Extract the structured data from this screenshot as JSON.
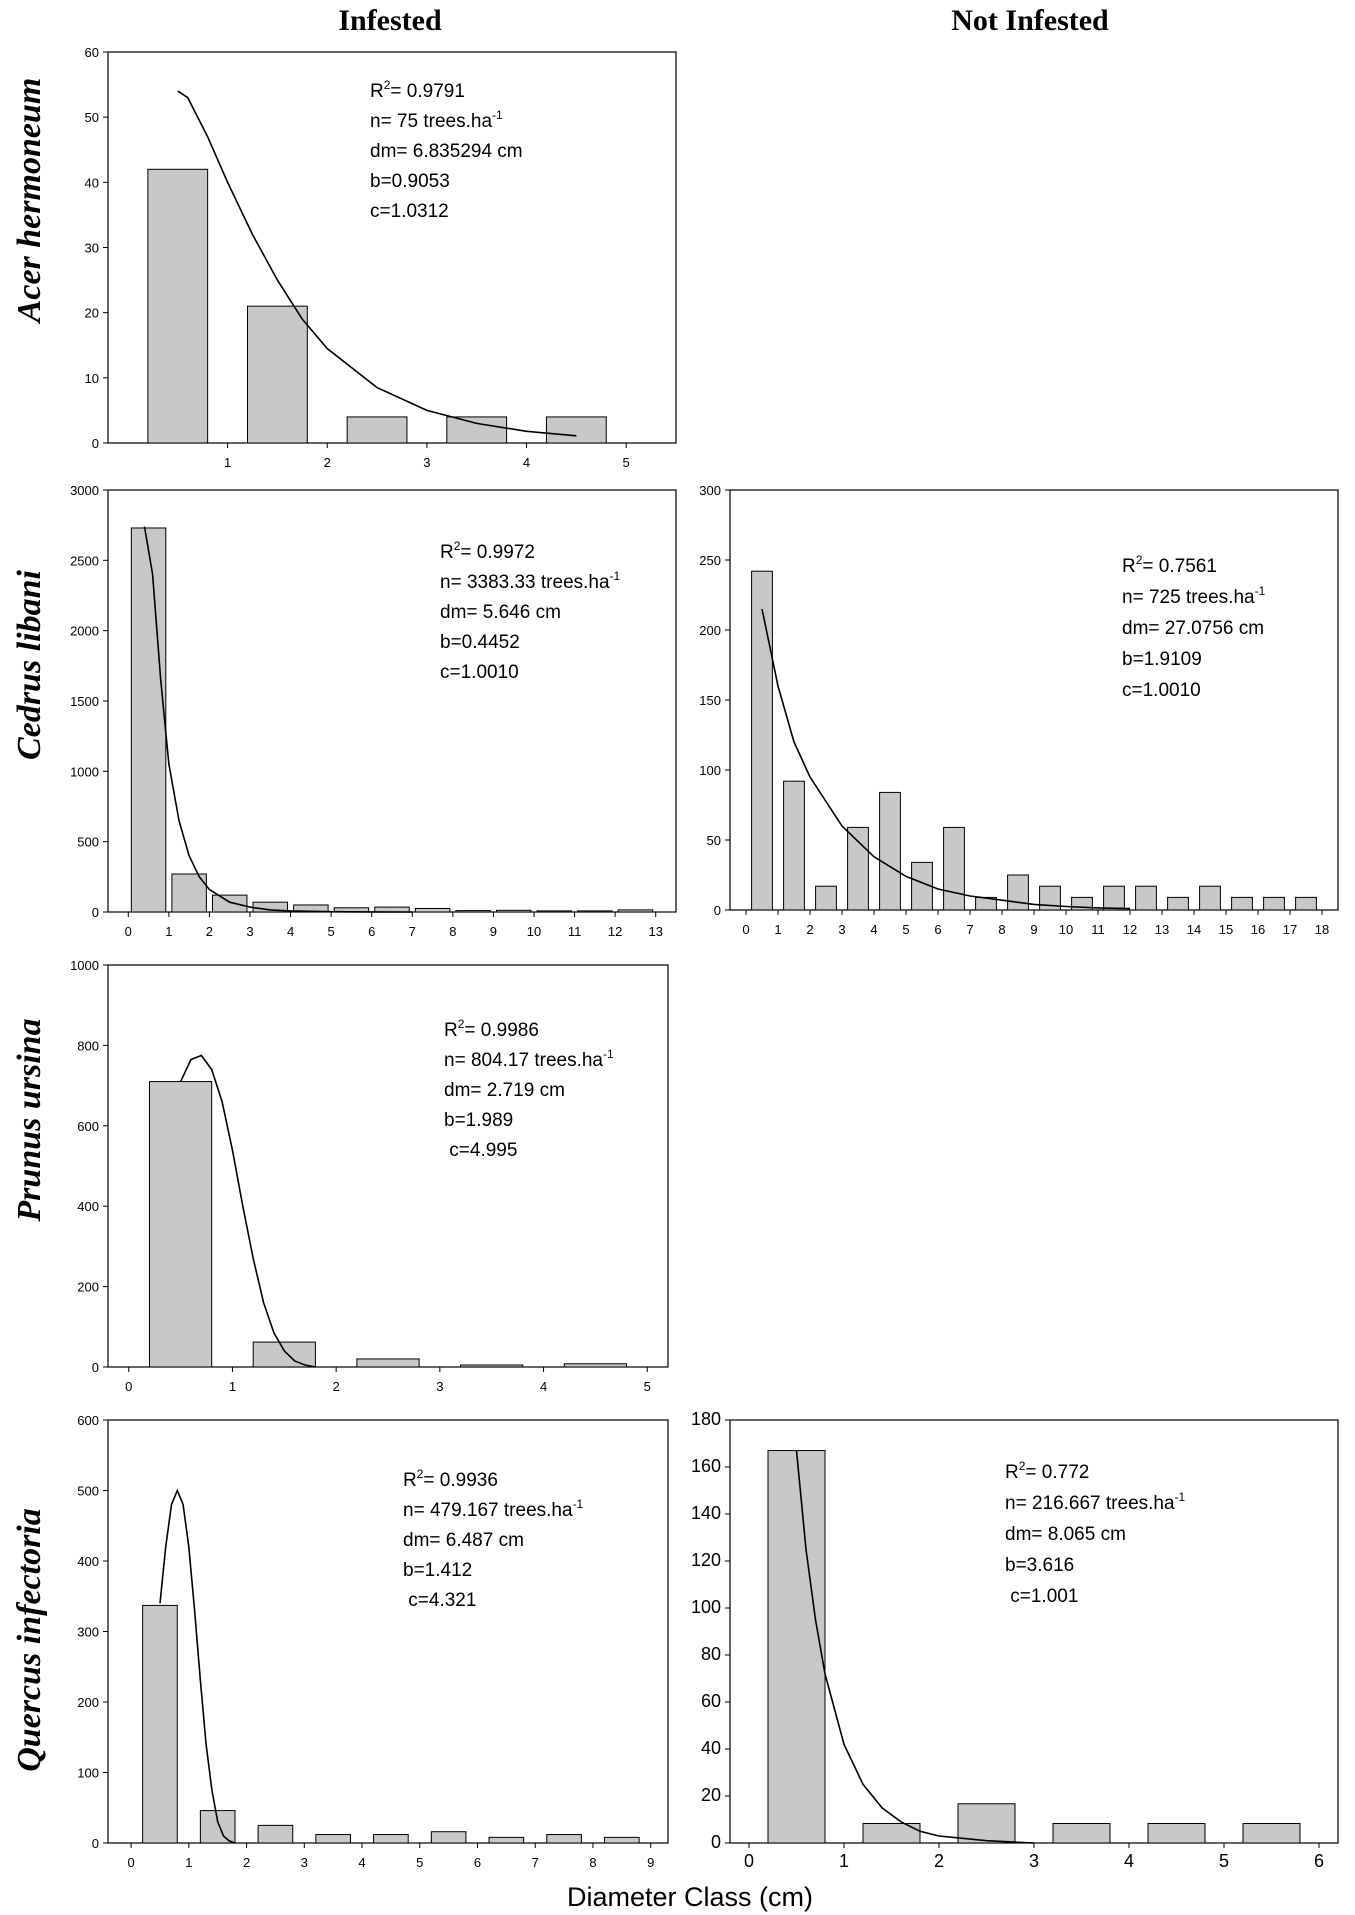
{
  "figure": {
    "col_titles": [
      "Infested",
      "Not Infested"
    ],
    "x_axis_label": "Diameter Class (cm)"
  },
  "chart_data": [
    {
      "type": "bar",
      "species": "Acer hermoneum",
      "condition": "Infested",
      "x": [
        0.5,
        1.5,
        2.5,
        3.5,
        4.5
      ],
      "values": [
        42,
        21,
        4,
        4,
        4
      ],
      "bar_width": 0.6,
      "xlim": [
        -0.2,
        5.5
      ],
      "ylim": [
        0,
        60
      ],
      "xticks": [
        1,
        2,
        3,
        4,
        5
      ],
      "yticks": [
        0,
        10,
        20,
        30,
        40,
        50,
        60
      ],
      "fit_curve": {
        "name": "Weibull fit",
        "x": [
          0.5,
          0.6,
          0.8,
          1.0,
          1.25,
          1.5,
          1.75,
          2.0,
          2.5,
          3.0,
          3.5,
          4.0,
          4.5
        ],
        "y": [
          54,
          53,
          47,
          40,
          32,
          25,
          19,
          14.5,
          8.5,
          5,
          3,
          1.8,
          1.1
        ]
      },
      "annotations": [
        "R|2|= 0.9791",
        "n= 75 trees.ha|-1|",
        "dm= 6.835294 cm",
        "b=0.9053",
        "c=1.0312"
      ]
    },
    {
      "type": "bar",
      "species": "Cedrus libani",
      "condition": "Infested",
      "x": [
        0.5,
        1.5,
        2.5,
        3.5,
        4.5,
        5.5,
        6.5,
        7.5,
        8.5,
        9.5,
        10.5,
        11.5,
        12.5
      ],
      "values": [
        2730,
        270,
        120,
        70,
        50,
        30,
        35,
        25,
        10,
        12,
        8,
        8,
        15
      ],
      "bar_width": 0.85,
      "xlim": [
        -0.5,
        13.5
      ],
      "ylim": [
        0,
        3000
      ],
      "xticks": [
        0,
        1,
        2,
        3,
        4,
        5,
        6,
        7,
        8,
        9,
        10,
        11,
        12,
        13
      ],
      "yticks": [
        0,
        500,
        1000,
        1500,
        2000,
        2500,
        3000
      ],
      "fit_curve": {
        "name": "Weibull fit",
        "x": [
          0.4,
          0.6,
          0.8,
          1.0,
          1.25,
          1.5,
          1.75,
          2.0,
          2.5,
          3.0,
          3.5,
          4.0,
          5.0,
          6.0,
          7.0
        ],
        "y": [
          2740,
          2400,
          1650,
          1050,
          650,
          400,
          250,
          160,
          70,
          35,
          15,
          8,
          2,
          0.5,
          0
        ]
      },
      "annotations": [
        "R|2|= 0.9972",
        "n= 3383.33 trees.ha|-1|",
        "dm= 5.646 cm",
        "b=0.4452",
        "c=1.0010"
      ]
    },
    {
      "type": "bar",
      "species": "Cedrus libani",
      "condition": "Not Infested",
      "x": [
        0.5,
        1.5,
        2.5,
        3.5,
        4.5,
        5.5,
        6.5,
        7.5,
        8.5,
        9.5,
        10.5,
        11.5,
        12.5,
        13.5,
        14.5,
        15.5,
        16.5,
        17.5
      ],
      "values": [
        242,
        92,
        17,
        59,
        84,
        34,
        59,
        9,
        25,
        17,
        9,
        17,
        17,
        9,
        17,
        9,
        9,
        9
      ],
      "bar_width": 0.65,
      "xlim": [
        -0.5,
        18.5
      ],
      "ylim": [
        0,
        300
      ],
      "xticks": [
        0,
        1,
        2,
        3,
        4,
        5,
        6,
        7,
        8,
        9,
        10,
        11,
        12,
        13,
        14,
        15,
        16,
        17,
        18
      ],
      "yticks": [
        0,
        50,
        100,
        150,
        200,
        250,
        300
      ],
      "fit_curve": {
        "name": "Weibull fit",
        "x": [
          0.5,
          1.0,
          1.5,
          2.0,
          3.0,
          4.0,
          5.0,
          6.0,
          7.0,
          8.0,
          9.0,
          10.0,
          11.0,
          12.0
        ],
        "y": [
          215,
          160,
          120,
          95,
          60,
          38,
          24,
          15,
          10,
          7,
          4,
          2.5,
          1.5,
          1
        ]
      },
      "annotations": [
        "R|2|= 0.7561",
        "n= 725 trees.ha|-1|",
        "dm= 27.0756 cm",
        "b=1.9109",
        "c=1.0010"
      ]
    },
    {
      "type": "bar",
      "species": "Prunus ursina",
      "condition": "Infested",
      "x": [
        0.5,
        1.5,
        2.5,
        3.5,
        4.5
      ],
      "values": [
        710,
        62,
        20,
        5,
        8
      ],
      "bar_width": 0.6,
      "xlim": [
        -0.2,
        5.2
      ],
      "ylim": [
        0,
        1000
      ],
      "xticks": [
        0,
        1,
        2,
        3,
        4,
        5
      ],
      "yticks": [
        0,
        200,
        400,
        600,
        800,
        1000
      ],
      "fit_curve": {
        "name": "Weibull fit",
        "x": [
          0.5,
          0.6,
          0.7,
          0.8,
          0.9,
          1.0,
          1.1,
          1.2,
          1.3,
          1.4,
          1.5,
          1.6,
          1.7,
          1.8
        ],
        "y": [
          710,
          765,
          775,
          740,
          660,
          540,
          400,
          270,
          160,
          85,
          40,
          15,
          5,
          0
        ]
      },
      "annotations": [
        "R|2|= 0.9986",
        "n= 804.17 trees.ha|-1|",
        "dm= 2.719 cm",
        "b=1.989",
        " c=4.995"
      ]
    },
    {
      "type": "bar",
      "species": "Quercus infectoria",
      "condition": "Infested",
      "x": [
        0.5,
        1.5,
        2.5,
        3.5,
        4.5,
        5.5,
        6.5,
        7.5,
        8.5
      ],
      "values": [
        337,
        46,
        25,
        12,
        12,
        16,
        8,
        12,
        8
      ],
      "bar_width": 0.6,
      "xlim": [
        -0.4,
        9.3
      ],
      "ylim": [
        0,
        600
      ],
      "xticks": [
        0,
        1,
        2,
        3,
        4,
        5,
        6,
        7,
        8,
        9
      ],
      "yticks": [
        0,
        100,
        200,
        300,
        400,
        500,
        600
      ],
      "fit_curve": {
        "name": "Weibull fit",
        "x": [
          0.5,
          0.6,
          0.7,
          0.8,
          0.9,
          1.0,
          1.1,
          1.2,
          1.3,
          1.4,
          1.5,
          1.6,
          1.7,
          1.8
        ],
        "y": [
          340,
          420,
          480,
          500,
          480,
          420,
          330,
          230,
          140,
          75,
          30,
          10,
          3,
          0
        ]
      },
      "annotations": [
        "R|2|= 0.9936",
        "n= 479.167 trees.ha|-1|",
        "dm= 6.487 cm",
        "b=1.412",
        " c=4.321"
      ]
    },
    {
      "type": "bar",
      "species": "Quercus infectoria",
      "condition": "Not Infested",
      "x": [
        0.5,
        1.5,
        2.5,
        3.5,
        4.5,
        5.5
      ],
      "values": [
        167,
        8.3,
        16.7,
        8.3,
        8.3,
        8.3
      ],
      "bar_width": 0.6,
      "xlim": [
        -0.2,
        6.2
      ],
      "ylim": [
        0,
        180
      ],
      "xticks": [
        0,
        1,
        2,
        3,
        4,
        5,
        6
      ],
      "yticks": [
        0,
        20,
        40,
        60,
        80,
        100,
        120,
        140,
        160,
        180
      ],
      "fit_curve": {
        "name": "Weibull fit",
        "x": [
          0.5,
          0.6,
          0.7,
          0.8,
          1.0,
          1.2,
          1.4,
          1.6,
          1.8,
          2.0,
          2.5,
          3.0
        ],
        "y": [
          167,
          125,
          95,
          72,
          42,
          25,
          15,
          9,
          5,
          3,
          1,
          0
        ]
      },
      "annotations": [
        "R|2|= 0.772",
        "n= 216.667 trees.ha|-1|",
        "dm= 8.065 cm",
        "b=3.616",
        " c=1.001"
      ]
    }
  ]
}
